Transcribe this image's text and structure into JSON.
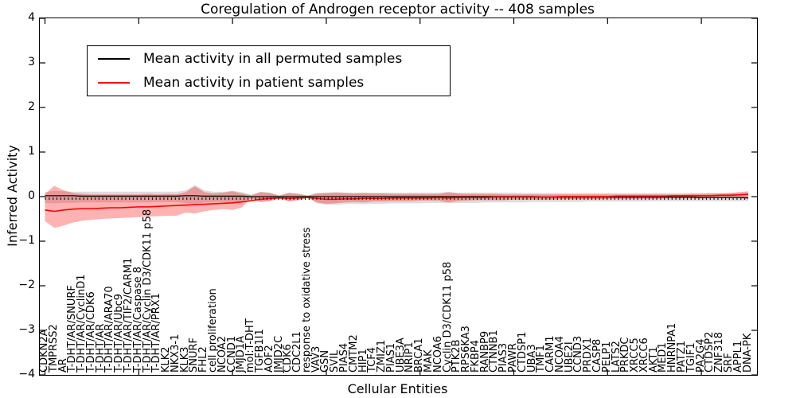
{
  "figure": {
    "title": "Coregulation of Androgen receptor activity -- 408 samples",
    "xlabel": "Cellular Entities",
    "ylabel": "Inferred Activity",
    "legend": [
      {
        "label": "Mean activity in all permuted samples",
        "color": "#000000"
      },
      {
        "label": "Mean activity in patient samples",
        "color": "#ff0000"
      }
    ]
  },
  "chart_data": {
    "type": "line",
    "title": "Coregulation of Androgen receptor activity -- 408 samples",
    "xlabel": "Cellular Entities",
    "ylabel": "Inferred Activity",
    "ylim": [
      -4,
      4
    ],
    "yticks": [
      "4",
      "3",
      "2",
      "1",
      "0",
      "−1",
      "−2",
      "−3",
      "−4"
    ],
    "xtick_every": 10,
    "grid": false,
    "legend_position": "upper left",
    "categories": [
      "CDKN2A",
      "TMPRSS2",
      "AR",
      "T-DHT/AR/SNURF",
      "T-DHT/AR/CyclinD1",
      "T-DHT/AR/CDK6",
      "T-DHT/AR",
      "T-DHT/AR/ARA70",
      "T-DHT/AR/Ubc9",
      "T-DHT/AR/TIF2/CARM1",
      "T-DHT/AR/Caspase 8",
      "T-DHT/AR/Cyclin D3/CDK11 p58",
      "T-DHT/AR/PRX1",
      "KLK2",
      "NKX3-1",
      "KLK3",
      "SNURF",
      "FHL2",
      "cell proliferation",
      "NCOA2",
      "CCND1",
      "JMJD1A",
      "mol:T-DHT",
      "TGFB1I1",
      "AOF2",
      "JMJD2C",
      "CDK6",
      "CDC2L1",
      "response to oxidative stress",
      "VAV3",
      "GSN",
      "SVIL",
      "PIAS4",
      "CMTM2",
      "HIP1",
      "TCF4",
      "ZMIZ1",
      "PIAS1",
      "UBE3A",
      "NRIP1",
      "BRCA1",
      "MAK",
      "NCOA6",
      "Cyclin D3/CDK11 p58",
      "PTK2B",
      "RPS6KA3",
      "FKBP4",
      "RANBP9",
      "CTNNB1",
      "PIAS3",
      "PAWR",
      "CTDSP1",
      "UBA3",
      "TMF1",
      "CARM1",
      "NCOA4",
      "UBE2I",
      "CCND3",
      "PRDX1",
      "CASP8",
      "PELP1",
      "LATS2",
      "PRKDC",
      "XRCC5",
      "XRCC6",
      "AKT1",
      "MED1",
      "HNRNPA1",
      "PATZ1",
      "TGIF1",
      "PA2G4",
      "CTDSP2",
      "ZNF318",
      "SRF",
      "APPL1",
      "DNA-PK"
    ],
    "series": [
      {
        "name": "Mean activity in all permuted samples",
        "color": "#000000",
        "band_color": "#bfbfbf",
        "band_opacity": 0.55,
        "values": [
          0.02,
          0.02,
          0.02,
          0.02,
          0.01,
          0.01,
          0.01,
          0.01,
          0.01,
          0.01,
          0.01,
          0.01,
          0.01,
          0.01,
          0.01,
          0.02,
          0.02,
          0.01,
          0.01,
          0.01,
          0.01,
          0.01,
          0.0,
          0.0,
          0.0,
          0.0,
          0.0,
          0.0,
          0.0,
          0.0,
          0.0,
          0.0,
          0.0,
          0.0,
          0.0,
          0.0,
          0.0,
          0.0,
          0.0,
          0.0,
          0.0,
          0.0,
          0.0,
          0.0,
          0.0,
          0.0,
          0.0,
          0.0,
          0.0,
          0.0,
          0.0,
          0.0,
          0.0,
          -0.01,
          -0.01,
          -0.01,
          -0.01,
          -0.01,
          -0.01,
          -0.01,
          -0.01,
          -0.01,
          -0.01,
          -0.01,
          -0.01,
          -0.01,
          -0.01,
          -0.01,
          -0.01,
          -0.01,
          -0.02,
          -0.02,
          -0.02,
          -0.02,
          -0.02,
          -0.03
        ],
        "band_low": [
          -0.14,
          -0.15,
          -0.14,
          -0.14,
          -0.13,
          -0.13,
          -0.13,
          -0.13,
          -0.13,
          -0.13,
          -0.13,
          -0.13,
          -0.12,
          -0.12,
          -0.12,
          -0.14,
          -0.16,
          -0.13,
          -0.12,
          -0.12,
          -0.13,
          -0.11,
          -0.04,
          -0.12,
          -0.1,
          -0.03,
          -0.11,
          -0.08,
          -0.03,
          -0.15,
          -0.18,
          -0.18,
          -0.17,
          -0.16,
          -0.17,
          -0.16,
          -0.16,
          -0.15,
          -0.15,
          -0.15,
          -0.15,
          -0.14,
          -0.14,
          -0.15,
          -0.14,
          -0.14,
          -0.14,
          -0.13,
          -0.13,
          -0.13,
          -0.13,
          -0.13,
          -0.12,
          -0.12,
          -0.12,
          -0.12,
          -0.12,
          -0.12,
          -0.11,
          -0.11,
          -0.11,
          -0.11,
          -0.11,
          -0.11,
          -0.11,
          -0.1,
          -0.1,
          -0.1,
          -0.1,
          -0.1,
          -0.1,
          -0.1,
          -0.1,
          -0.1,
          -0.1,
          -0.1
        ],
        "band_high": [
          0.1,
          0.13,
          0.12,
          0.11,
          0.11,
          0.11,
          0.11,
          0.11,
          0.11,
          0.11,
          0.11,
          0.11,
          0.11,
          0.11,
          0.11,
          0.14,
          0.26,
          0.14,
          0.11,
          0.11,
          0.13,
          0.1,
          0.04,
          0.11,
          0.09,
          0.03,
          0.09,
          0.07,
          0.03,
          0.08,
          0.09,
          0.1,
          0.09,
          0.09,
          0.09,
          0.09,
          0.09,
          0.09,
          0.09,
          0.09,
          0.09,
          0.09,
          0.09,
          0.1,
          0.09,
          0.09,
          0.09,
          0.09,
          0.09,
          0.09,
          0.09,
          0.08,
          0.08,
          0.08,
          0.08,
          0.08,
          0.08,
          0.08,
          0.08,
          0.08,
          0.08,
          0.08,
          0.08,
          0.08,
          0.08,
          0.08,
          0.08,
          0.08,
          0.08,
          0.08,
          0.08,
          0.08,
          0.08,
          0.08,
          0.08,
          0.09
        ]
      },
      {
        "name": "Mean activity in patient samples",
        "color": "#ff0000",
        "band_color": "#ff0000",
        "band_opacity": 0.3,
        "values": [
          -0.3,
          -0.33,
          -0.3,
          -0.28,
          -0.27,
          -0.27,
          -0.26,
          -0.25,
          -0.25,
          -0.24,
          -0.23,
          -0.23,
          -0.22,
          -0.21,
          -0.2,
          -0.19,
          -0.18,
          -0.17,
          -0.16,
          -0.15,
          -0.14,
          -0.12,
          -0.09,
          -0.06,
          -0.04,
          -0.03,
          -0.04,
          -0.03,
          -0.02,
          -0.04,
          -0.06,
          -0.06,
          -0.05,
          -0.05,
          -0.04,
          -0.04,
          -0.04,
          -0.03,
          -0.03,
          -0.03,
          -0.03,
          -0.03,
          -0.02,
          -0.03,
          -0.02,
          -0.02,
          -0.02,
          -0.02,
          -0.01,
          -0.01,
          -0.01,
          -0.01,
          -0.01,
          -0.01,
          -0.01,
          0.0,
          0.0,
          0.0,
          0.0,
          0.0,
          0.0,
          0.01,
          0.01,
          0.01,
          0.01,
          0.01,
          0.01,
          0.02,
          0.02,
          0.02,
          0.02,
          0.02,
          0.03,
          0.03,
          0.04,
          0.05
        ],
        "band_low": [
          -0.55,
          -0.7,
          -0.65,
          -0.58,
          -0.54,
          -0.52,
          -0.5,
          -0.49,
          -0.48,
          -0.47,
          -0.46,
          -0.45,
          -0.44,
          -0.43,
          -0.43,
          -0.36,
          -0.38,
          -0.33,
          -0.3,
          -0.28,
          -0.3,
          -0.24,
          -0.04,
          -0.12,
          -0.1,
          -0.03,
          -0.11,
          -0.08,
          -0.02,
          -0.13,
          -0.16,
          -0.15,
          -0.13,
          -0.12,
          -0.13,
          -0.11,
          -0.11,
          -0.1,
          -0.1,
          -0.1,
          -0.09,
          -0.09,
          -0.09,
          -0.13,
          -0.1,
          -0.09,
          -0.08,
          -0.08,
          -0.08,
          -0.08,
          -0.07,
          -0.07,
          -0.07,
          -0.07,
          -0.07,
          -0.06,
          -0.06,
          -0.06,
          -0.06,
          -0.06,
          -0.05,
          -0.05,
          -0.05,
          -0.05,
          -0.05,
          -0.05,
          -0.04,
          -0.04,
          -0.04,
          -0.04,
          -0.04,
          -0.03,
          -0.03,
          -0.03,
          -0.02,
          -0.02
        ],
        "band_high": [
          0.06,
          0.24,
          0.14,
          0.08,
          0.06,
          0.05,
          0.05,
          0.05,
          0.05,
          0.05,
          0.05,
          0.06,
          0.05,
          0.06,
          0.05,
          0.1,
          0.23,
          0.1,
          0.07,
          0.09,
          0.12,
          0.07,
          0.03,
          0.1,
          0.08,
          0.02,
          0.08,
          0.06,
          0.02,
          0.07,
          0.08,
          0.09,
          0.08,
          0.07,
          0.08,
          0.07,
          0.07,
          0.06,
          0.06,
          0.06,
          0.06,
          0.06,
          0.06,
          0.1,
          0.07,
          0.06,
          0.06,
          0.06,
          0.06,
          0.05,
          0.05,
          0.05,
          0.05,
          0.05,
          0.05,
          0.05,
          0.05,
          0.05,
          0.05,
          0.05,
          0.05,
          0.05,
          0.05,
          0.05,
          0.05,
          0.05,
          0.05,
          0.05,
          0.05,
          0.06,
          0.06,
          0.07,
          0.07,
          0.08,
          0.1,
          0.12
        ]
      }
    ]
  }
}
